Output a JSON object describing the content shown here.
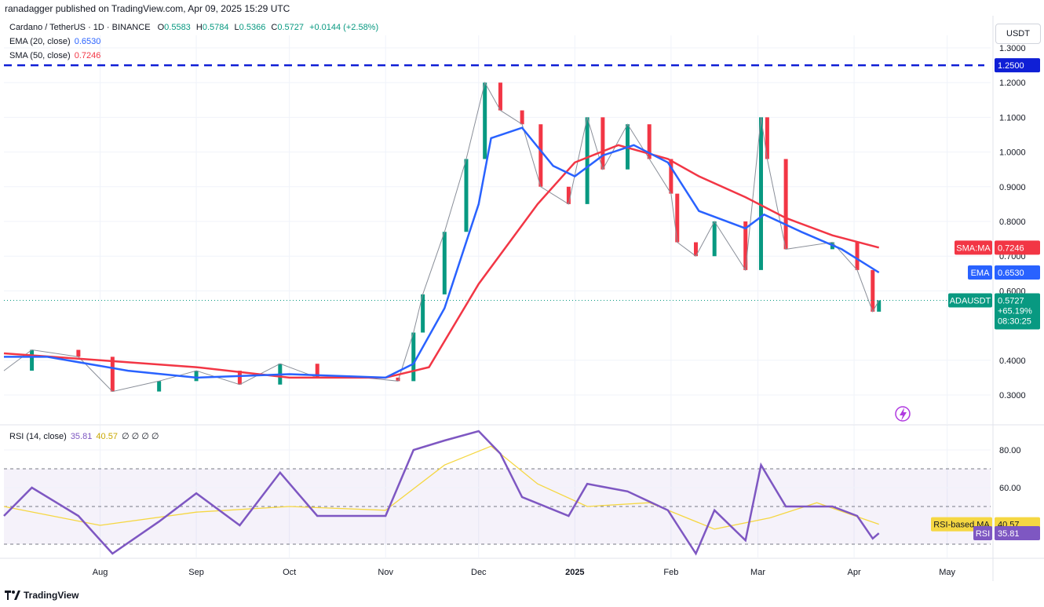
{
  "header": {
    "publisher": "ranadagger published on TradingView.com, Apr 09, 2025 15:29 UTC"
  },
  "legend": {
    "symbol": "Cardano / TetherUS · 1D · BINANCE",
    "open_label": "O",
    "open": "0.5583",
    "high_label": "H",
    "high": "0.5784",
    "low_label": "L",
    "low": "0.5366",
    "close_label": "C",
    "close": "0.5727",
    "change": "+0.0144 (+2.58%)",
    "ema_label": "EMA (20, close)",
    "ema_value": "0.6530",
    "sma_label": "SMA (50, close)",
    "sma_value": "0.7246",
    "rsi_label": "RSI (14, close)",
    "rsi_value": "35.81",
    "rsi_ma_value": "40.57",
    "rsi_extra": "∅ ∅ ∅ ∅"
  },
  "axis": {
    "unit": "USDT",
    "footer_brand": "TradingView"
  },
  "badges": {
    "resistance": "1.2500",
    "sma_tag": "SMA:MA",
    "sma_val": "0.7246",
    "ema_tag": "EMA",
    "ema_val": "0.6530",
    "sym_tag": "ADAUSDT",
    "price": "0.5727",
    "pct": "+65.19%",
    "countdown": "08:30:25",
    "rsima_tag": "RSI-based MA",
    "rsima_val": "40.57",
    "rsi_tag": "RSI",
    "rsi_val": "35.81"
  },
  "colors": {
    "up": "#089981",
    "down": "#f23645",
    "ema": "#2962ff",
    "sma": "#f23645",
    "rsi": "#7e57c2",
    "rsi_ma": "#f5d742",
    "resistance": "#0f1fd6",
    "grid": "#f0f3fa"
  },
  "chart_data": [
    {
      "type": "line",
      "title": "Cardano / TetherUS · 1D · BINANCE",
      "price_ticks": [
        0.3,
        0.4,
        0.6,
        0.7,
        0.8,
        0.9,
        1.0,
        1.1,
        1.2,
        1.3
      ],
      "price_tick_labels": [
        "0.3000",
        "0.4000",
        "0.6000",
        "0.7000",
        "0.8000",
        "0.9000",
        "1.0000",
        "1.1000",
        "1.2000",
        "1.3000"
      ],
      "x_ticks": [
        "Aug",
        "Sep",
        "Oct",
        "Nov",
        "Dec",
        "2025",
        "Feb",
        "Mar",
        "Apr",
        "May"
      ],
      "x_tick_dates": [
        "2024-08-01",
        "2024-09-01",
        "2024-10-01",
        "2024-11-01",
        "2024-12-01",
        "2025-01-01",
        "2025-02-01",
        "2025-03-01",
        "2025-04-01",
        "2025-05-01"
      ],
      "ylim": [
        0.25,
        1.35
      ],
      "horizontal_line": 1.25,
      "last_price": 0.5727,
      "series": [
        {
          "name": "ADAUSDT",
          "kind": "close",
          "points": [
            [
              "2024-07-01",
              0.37
            ],
            [
              "2024-07-10",
              0.43
            ],
            [
              "2024-07-25",
              0.41
            ],
            [
              "2024-08-05",
              0.31
            ],
            [
              "2024-08-20",
              0.34
            ],
            [
              "2024-09-01",
              0.37
            ],
            [
              "2024-09-15",
              0.33
            ],
            [
              "2024-09-28",
              0.39
            ],
            [
              "2024-10-10",
              0.35
            ],
            [
              "2024-10-25",
              0.35
            ],
            [
              "2024-11-05",
              0.34
            ],
            [
              "2024-11-10",
              0.48
            ],
            [
              "2024-11-13",
              0.59
            ],
            [
              "2024-11-20",
              0.77
            ],
            [
              "2024-11-27",
              0.98
            ],
            [
              "2024-12-03",
              1.2
            ],
            [
              "2024-12-08",
              1.12
            ],
            [
              "2024-12-15",
              1.08
            ],
            [
              "2024-12-21",
              0.9
            ],
            [
              "2024-12-30",
              0.85
            ],
            [
              "2025-01-05",
              1.1
            ],
            [
              "2025-01-10",
              0.95
            ],
            [
              "2025-01-18",
              1.08
            ],
            [
              "2025-01-25",
              0.98
            ],
            [
              "2025-02-01",
              0.88
            ],
            [
              "2025-02-03",
              0.74
            ],
            [
              "2025-02-09",
              0.7
            ],
            [
              "2025-02-15",
              0.8
            ],
            [
              "2025-02-25",
              0.66
            ],
            [
              "2025-03-02",
              1.1
            ],
            [
              "2025-03-04",
              0.98
            ],
            [
              "2025-03-10",
              0.72
            ],
            [
              "2025-03-25",
              0.74
            ],
            [
              "2025-04-02",
              0.66
            ],
            [
              "2025-04-07",
              0.54
            ],
            [
              "2025-04-09",
              0.5727
            ]
          ]
        },
        {
          "name": "EMA (20, close)",
          "kind": "ema",
          "points": [
            [
              "2024-07-01",
              0.41
            ],
            [
              "2024-07-15",
              0.41
            ],
            [
              "2024-08-10",
              0.37
            ],
            [
              "2024-09-01",
              0.35
            ],
            [
              "2024-10-01",
              0.36
            ],
            [
              "2024-11-01",
              0.35
            ],
            [
              "2024-11-10",
              0.39
            ],
            [
              "2024-11-20",
              0.55
            ],
            [
              "2024-12-01",
              0.85
            ],
            [
              "2024-12-05",
              1.04
            ],
            [
              "2024-12-15",
              1.07
            ],
            [
              "2024-12-25",
              0.96
            ],
            [
              "2025-01-01",
              0.93
            ],
            [
              "2025-01-10",
              0.99
            ],
            [
              "2025-01-20",
              1.02
            ],
            [
              "2025-01-31",
              0.97
            ],
            [
              "2025-02-10",
              0.83
            ],
            [
              "2025-02-25",
              0.78
            ],
            [
              "2025-03-03",
              0.82
            ],
            [
              "2025-03-15",
              0.77
            ],
            [
              "2025-03-28",
              0.72
            ],
            [
              "2025-04-09",
              0.653
            ]
          ]
        },
        {
          "name": "SMA (50, close)",
          "kind": "sma",
          "points": [
            [
              "2024-07-01",
              0.42
            ],
            [
              "2024-08-01",
              0.4
            ],
            [
              "2024-09-01",
              0.38
            ],
            [
              "2024-10-01",
              0.35
            ],
            [
              "2024-11-01",
              0.35
            ],
            [
              "2024-11-15",
              0.38
            ],
            [
              "2024-12-01",
              0.62
            ],
            [
              "2024-12-20",
              0.85
            ],
            [
              "2025-01-01",
              0.97
            ],
            [
              "2025-01-15",
              1.02
            ],
            [
              "2025-01-31",
              0.98
            ],
            [
              "2025-02-10",
              0.93
            ],
            [
              "2025-02-25",
              0.87
            ],
            [
              "2025-03-10",
              0.81
            ],
            [
              "2025-03-25",
              0.76
            ],
            [
              "2025-04-09",
              0.7246
            ]
          ]
        }
      ]
    },
    {
      "type": "line",
      "title": "RSI (14, close)",
      "y_ticks": [
        60,
        80
      ],
      "y_tick_labels": [
        "60.00",
        "80.00"
      ],
      "bands": [
        30,
        50,
        70
      ],
      "ylim": [
        22,
        92
      ],
      "series": [
        {
          "name": "RSI",
          "points": [
            [
              "2024-07-01",
              45
            ],
            [
              "2024-07-10",
              60
            ],
            [
              "2024-07-25",
              45
            ],
            [
              "2024-08-05",
              25
            ],
            [
              "2024-08-20",
              42
            ],
            [
              "2024-09-01",
              57
            ],
            [
              "2024-09-15",
              40
            ],
            [
              "2024-09-28",
              68
            ],
            [
              "2024-10-10",
              45
            ],
            [
              "2024-11-01",
              45
            ],
            [
              "2024-11-10",
              80
            ],
            [
              "2024-11-20",
              85
            ],
            [
              "2024-12-01",
              90
            ],
            [
              "2024-12-08",
              78
            ],
            [
              "2024-12-15",
              55
            ],
            [
              "2024-12-30",
              45
            ],
            [
              "2025-01-05",
              62
            ],
            [
              "2025-01-18",
              58
            ],
            [
              "2025-01-31",
              48
            ],
            [
              "2025-02-09",
              25
            ],
            [
              "2025-02-15",
              48
            ],
            [
              "2025-02-25",
              32
            ],
            [
              "2025-03-02",
              72
            ],
            [
              "2025-03-10",
              50
            ],
            [
              "2025-03-25",
              50
            ],
            [
              "2025-04-02",
              45
            ],
            [
              "2025-04-07",
              33
            ],
            [
              "2025-04-09",
              35.81
            ]
          ]
        },
        {
          "name": "RSI-based MA",
          "points": [
            [
              "2024-07-01",
              50
            ],
            [
              "2024-08-01",
              40
            ],
            [
              "2024-09-01",
              47
            ],
            [
              "2024-10-01",
              50
            ],
            [
              "2024-11-01",
              48
            ],
            [
              "2024-11-20",
              72
            ],
            [
              "2024-12-05",
              82
            ],
            [
              "2024-12-20",
              62
            ],
            [
              "2025-01-05",
              50
            ],
            [
              "2025-01-25",
              52
            ],
            [
              "2025-02-15",
              38
            ],
            [
              "2025-03-05",
              44
            ],
            [
              "2025-03-20",
              52
            ],
            [
              "2025-04-09",
              40.57
            ]
          ]
        }
      ]
    }
  ]
}
